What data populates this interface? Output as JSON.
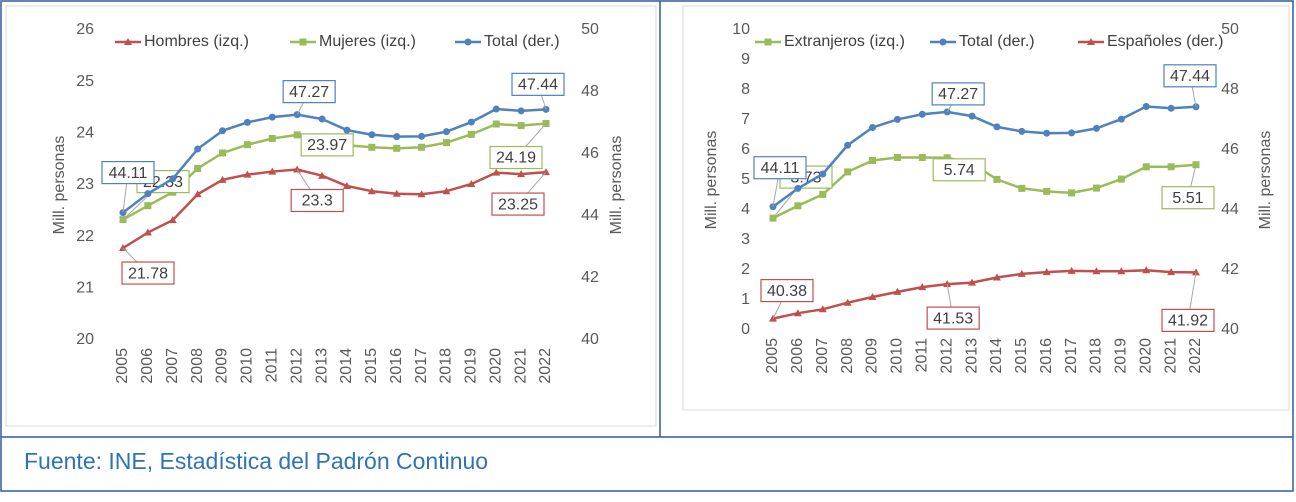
{
  "chart_data": [
    {
      "type": "line",
      "categories": [
        "2005",
        "2006",
        "2007",
        "2008",
        "2009",
        "2010",
        "2011",
        "2012",
        "2013",
        "2014",
        "2015",
        "2016",
        "2017",
        "2018",
        "2019",
        "2020",
        "2021",
        "2022"
      ],
      "ylim": [
        20,
        26
      ],
      "yticks": [
        20,
        21,
        22,
        23,
        24,
        25,
        26
      ],
      "y2lim": [
        40,
        50
      ],
      "y2ticks": [
        40,
        42,
        44,
        46,
        48,
        50
      ],
      "ylabel": "Mill. personas",
      "y2label": "Mill. personas",
      "grid": false,
      "series": [
        {
          "name": "Hombres (izq.)",
          "color": "#c0504d",
          "marker": "triangle",
          "axis": "y",
          "values": [
            21.78,
            22.08,
            22.32,
            22.82,
            23.1,
            23.2,
            23.26,
            23.3,
            23.18,
            22.98,
            22.88,
            22.83,
            22.82,
            22.88,
            23.02,
            23.24,
            23.21,
            23.25
          ],
          "label_points": [
            0,
            7,
            17
          ]
        },
        {
          "name": "Mujeres (izq.)",
          "color": "#9bbb59",
          "marker": "square",
          "axis": "y",
          "values": [
            22.33,
            22.6,
            22.86,
            23.32,
            23.62,
            23.78,
            23.9,
            23.97,
            23.93,
            23.77,
            23.73,
            23.71,
            23.73,
            23.82,
            23.98,
            24.18,
            24.15,
            24.19
          ],
          "label_points": [
            0,
            7,
            17
          ]
        },
        {
          "name": "Total (der.)",
          "color": "#4f81bd",
          "marker": "circle",
          "axis": "y2",
          "values": [
            44.11,
            44.72,
            45.2,
            46.16,
            46.75,
            47.02,
            47.19,
            47.27,
            47.13,
            46.77,
            46.62,
            46.56,
            46.57,
            46.72,
            47.03,
            47.45,
            47.39,
            47.44
          ],
          "label_points": [
            0,
            7,
            17
          ]
        }
      ]
    },
    {
      "type": "line",
      "categories": [
        "2005",
        "2006",
        "2007",
        "2008",
        "2009",
        "2010",
        "2011",
        "2012",
        "2013",
        "2014",
        "2015",
        "2016",
        "2017",
        "2018",
        "2019",
        "2020",
        "2021",
        "2022"
      ],
      "ylim": [
        0,
        10
      ],
      "yticks": [
        0,
        1,
        2,
        3,
        4,
        5,
        6,
        7,
        8,
        9,
        10
      ],
      "y2lim": [
        40,
        50
      ],
      "y2ticks": [
        40,
        42,
        44,
        46,
        48,
        50
      ],
      "ylabel": "Mill. personas",
      "y2label": "Mill. personas",
      "grid": false,
      "series": [
        {
          "name": "Extranjeros (izq.)",
          "color": "#9bbb59",
          "marker": "square",
          "axis": "y",
          "values": [
            3.73,
            4.14,
            4.52,
            5.27,
            5.65,
            5.75,
            5.75,
            5.74,
            5.55,
            5.02,
            4.72,
            4.62,
            4.57,
            4.73,
            5.03,
            5.44,
            5.44,
            5.51
          ],
          "label_points": [
            0,
            7,
            17
          ]
        },
        {
          "name": "Total (der.)",
          "color": "#4f81bd",
          "marker": "circle",
          "axis": "y2",
          "values": [
            44.11,
            44.72,
            45.2,
            46.16,
            46.75,
            47.02,
            47.19,
            47.27,
            47.13,
            46.77,
            46.62,
            46.56,
            46.57,
            46.72,
            47.03,
            47.45,
            47.39,
            47.44
          ],
          "label_points": [
            0,
            7,
            17
          ]
        },
        {
          "name": "Españoles (der.)",
          "color": "#c0504d",
          "marker": "triangle",
          "axis": "y2",
          "values": [
            40.38,
            40.56,
            40.69,
            40.91,
            41.1,
            41.27,
            41.43,
            41.53,
            41.58,
            41.75,
            41.87,
            41.93,
            41.97,
            41.96,
            41.96,
            41.99,
            41.93,
            41.92
          ],
          "label_points": [
            0,
            7,
            17
          ]
        }
      ]
    }
  ],
  "source": "Fuente: INE, Estadística del Padrón Continuo"
}
